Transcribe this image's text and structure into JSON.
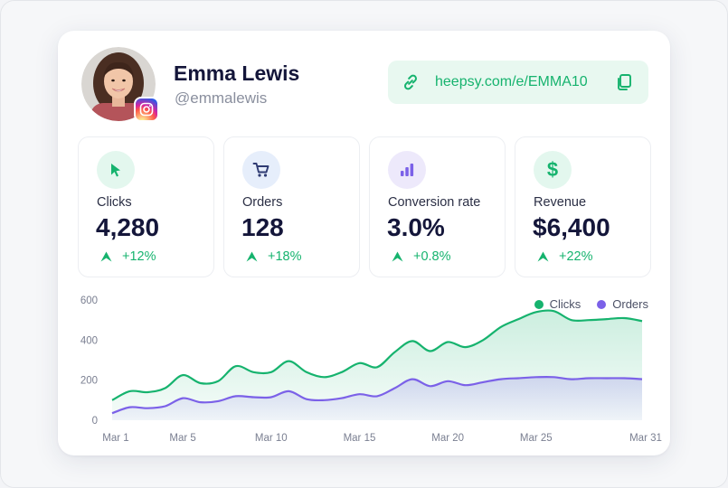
{
  "profile": {
    "name": "Emma Lewis",
    "handle": "@emmalewis",
    "social_icon": "instagram-icon"
  },
  "link": {
    "url": "heepsy.com/e/EMMA10",
    "link_icon": "link-icon",
    "copy_icon": "copy-icon"
  },
  "stats": [
    {
      "label": "Clicks",
      "value": "4,280",
      "change": "+12%",
      "icon": "cursor-icon",
      "icon_bg": "#e3f7ee",
      "icon_color": "#16b36e"
    },
    {
      "label": "Orders",
      "value": "128",
      "change": "+18%",
      "icon": "cart-icon",
      "icon_bg": "#e6eefb",
      "icon_color": "#3b4a8c"
    },
    {
      "label": "Conversion rate",
      "value": "3.0%",
      "change": "+0.8%",
      "icon": "bar-chart-icon",
      "icon_bg": "#ede9fb",
      "icon_color": "#7b61e8"
    },
    {
      "label": "Revenue",
      "value": "$6,400",
      "change": "+22%",
      "icon": "dollar-icon",
      "icon_bg": "#e3f7ee",
      "icon_color": "#16b36e"
    }
  ],
  "colors": {
    "accent_green": "#16b36e",
    "accent_purple": "#7b61e8",
    "title": "#14163a"
  },
  "chart_data": {
    "type": "area",
    "x": [
      "Mar 1",
      "Mar 2",
      "Mar 3",
      "Mar 4",
      "Mar 5",
      "Mar 6",
      "Mar 7",
      "Mar 8",
      "Mar 9",
      "Mar 10",
      "Mar 11",
      "Mar 12",
      "Mar 13",
      "Mar 14",
      "Mar 15",
      "Mar 16",
      "Mar 17",
      "Mar 18",
      "Mar 19",
      "Mar 20",
      "Mar 21",
      "Mar 22",
      "Mar 23",
      "Mar 24",
      "Mar 25",
      "Mar 26",
      "Mar 27",
      "Mar 28",
      "Mar 29",
      "Mar 30",
      "Mar 31"
    ],
    "xticks": [
      "Mar 1",
      "Mar 5",
      "Mar 10",
      "Mar 15",
      "Mar 20",
      "Mar 25",
      "Mar 31"
    ],
    "yticks": [
      "0",
      "200",
      "400",
      "600"
    ],
    "ylim": [
      0,
      600
    ],
    "series": [
      {
        "name": "Clicks",
        "color": "#16b36e",
        "values": [
          100,
          145,
          140,
          160,
          225,
          185,
          195,
          270,
          240,
          240,
          295,
          240,
          215,
          240,
          285,
          265,
          340,
          395,
          345,
          390,
          365,
          400,
          465,
          505,
          540,
          545,
          500,
          500,
          505,
          510,
          495
        ]
      },
      {
        "name": "Orders",
        "color": "#7b61e8",
        "values": [
          35,
          65,
          60,
          70,
          110,
          90,
          95,
          120,
          115,
          115,
          145,
          105,
          100,
          110,
          130,
          120,
          160,
          205,
          170,
          195,
          175,
          190,
          205,
          210,
          215,
          215,
          205,
          210,
          210,
          210,
          205
        ]
      }
    ],
    "legend": "top-right",
    "grid": false
  }
}
